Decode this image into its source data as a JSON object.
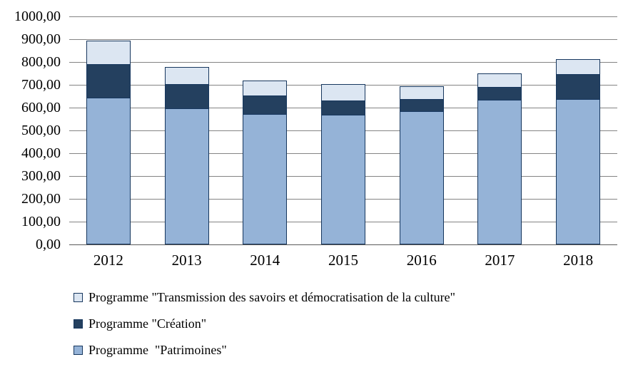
{
  "chart_data": {
    "type": "bar",
    "subtype": "stacked-vertical",
    "title": "",
    "xlabel": "",
    "ylabel": "",
    "categories": [
      "2012",
      "2013",
      "2014",
      "2015",
      "2016",
      "2017",
      "2018"
    ],
    "series": [
      {
        "key": "patrimoines",
        "name": "Programme  \"Patrimoines\"",
        "color": "#95B3D7",
        "values": [
          645,
          597,
          573,
          570,
          583,
          635,
          638
        ]
      },
      {
        "key": "creation",
        "name": "Programme \"Création\"",
        "color": "#24405F",
        "values": [
          146,
          106,
          80,
          60,
          55,
          57,
          110
        ]
      },
      {
        "key": "transmission",
        "name": "Programme \"Transmission des savoirs et démocratisation de la culture\"",
        "color": "#DCE6F2",
        "values": [
          103,
          75,
          66,
          74,
          55,
          58,
          64
        ]
      }
    ],
    "stack_order_bottom_to_top": [
      "patrimoines",
      "creation",
      "transmission"
    ],
    "totals": [
      894,
      778,
      719,
      704,
      693,
      750,
      812
    ],
    "ylim": [
      0,
      1000
    ],
    "ytick_step": 100,
    "ytick_labels": [
      "0,00",
      "100,00",
      "200,00",
      "300,00",
      "400,00",
      "500,00",
      "600,00",
      "700,00",
      "800,00",
      "900,00",
      "1000,00"
    ],
    "grid": true,
    "legend_position": "bottom-left"
  },
  "legend": {
    "items": [
      {
        "label": "Programme \"Transmission des savoirs et démocratisation de la culture\"",
        "color": "#DCE6F2"
      },
      {
        "label": "Programme \"Création\"",
        "color": "#24405F"
      },
      {
        "label": "Programme  \"Patrimoines\"",
        "color": "#95B3D7"
      }
    ]
  },
  "colors": {
    "bar_border": "#17375E",
    "gridline": "#848484",
    "axis_line": "#595959",
    "text": "#000000",
    "background": "#FFFFFF"
  }
}
